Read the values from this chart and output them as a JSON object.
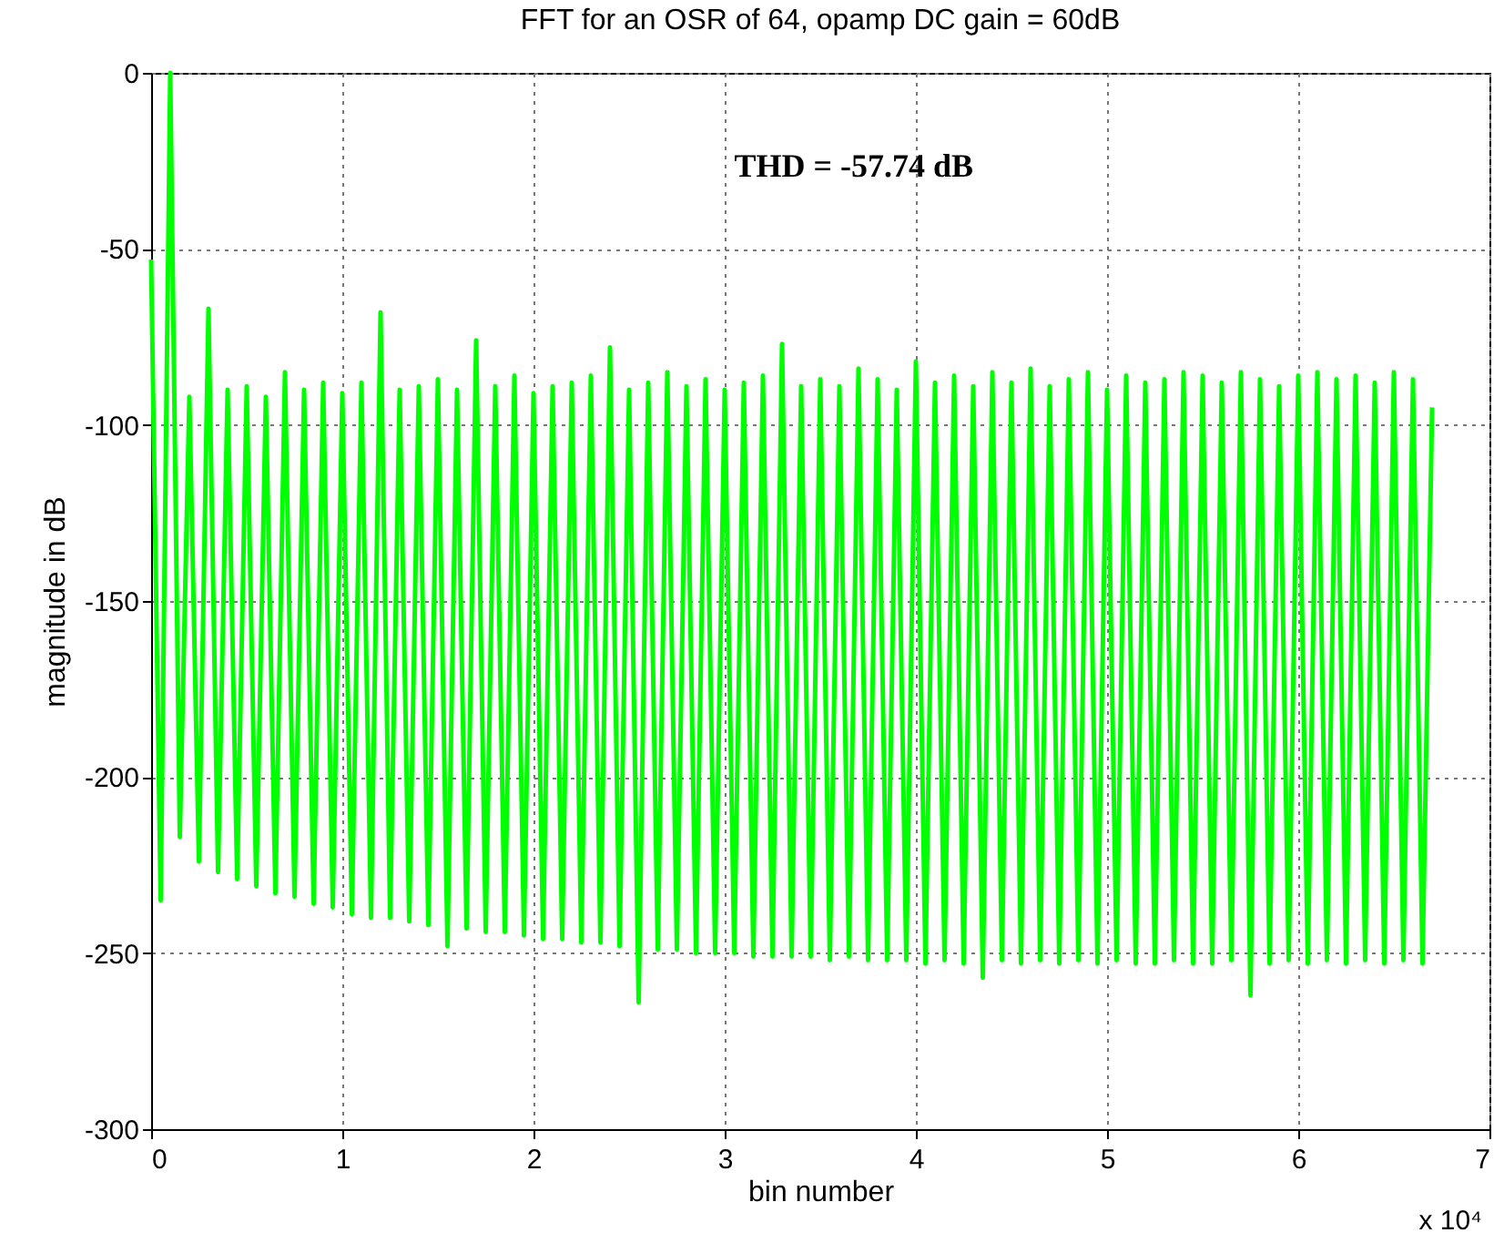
{
  "chart_data": {
    "type": "line",
    "title": "FFT for an OSR of 64, opamp DC gain = 60dB",
    "xlabel": "bin number",
    "ylabel": "magnitude in dB",
    "annotations": [
      "THD = -57.74 dB",
      "x 10⁴"
    ],
    "x": [
      0,
      0.05,
      0.1,
      0.15,
      0.2,
      0.25,
      0.3,
      0.35,
      0.4,
      0.45,
      0.5,
      0.55,
      0.6,
      0.65,
      0.7,
      0.75,
      0.8,
      0.85,
      0.9,
      0.95,
      1,
      1.05,
      1.1,
      1.15,
      1.2,
      1.25,
      1.3,
      1.35,
      1.4,
      1.45,
      1.5,
      1.55,
      1.6,
      1.65,
      1.7,
      1.75,
      1.8,
      1.85,
      1.9,
      1.95,
      2,
      2.05,
      2.1,
      2.15,
      2.2,
      2.25,
      2.3,
      2.35,
      2.4,
      2.45,
      2.5,
      2.55,
      2.6,
      2.65,
      2.7,
      2.75,
      2.8,
      2.85,
      2.9,
      2.95,
      3,
      3.05,
      3.1,
      3.15,
      3.2,
      3.25,
      3.3,
      3.35,
      3.4,
      3.45,
      3.5,
      3.55,
      3.6,
      3.65,
      3.7,
      3.75,
      3.8,
      3.85,
      3.9,
      3.95,
      4,
      4.05,
      4.1,
      4.15,
      4.2,
      4.25,
      4.3,
      4.35,
      4.4,
      4.45,
      4.5,
      4.55,
      4.6,
      4.65,
      4.7,
      4.75,
      4.8,
      4.85,
      4.9,
      4.95,
      5,
      5.05,
      5.1,
      5.15,
      5.2,
      5.25,
      5.3,
      5.35,
      5.4,
      5.45,
      5.5,
      5.55,
      5.6,
      5.65,
      5.7,
      5.75,
      5.8,
      5.85,
      5.9,
      5.95,
      6,
      6.05,
      6.1,
      6.15,
      6.2,
      6.25,
      6.3,
      6.35,
      6.4,
      6.45,
      6.5,
      6.55,
      6.6,
      6.65,
      6.7
    ],
    "series": [
      {
        "color": "#00ff00",
        "values": [
          -53,
          -235,
          0,
          -217,
          -92,
          -224,
          -67,
          -227,
          -90,
          -229,
          -89,
          -231,
          -92,
          -233,
          -85,
          -234,
          -90,
          -236,
          -88,
          -237,
          -91,
          -239,
          -88,
          -240,
          -68,
          -240,
          -90,
          -241,
          -89,
          -242,
          -87,
          -248,
          -90,
          -243,
          -76,
          -244,
          -89,
          -244,
          -86,
          -245,
          -91,
          -246,
          -89,
          -246,
          -88,
          -247,
          -86,
          -247,
          -78,
          -248,
          -90,
          -264,
          -88,
          -249,
          -85,
          -249,
          -89,
          -250,
          -87,
          -250,
          -90,
          -250,
          -88,
          -251,
          -86,
          -251,
          -77,
          -251,
          -89,
          -251,
          -87,
          -252,
          -89,
          -251,
          -84,
          -252,
          -87,
          -252,
          -90,
          -252,
          -82,
          -253,
          -88,
          -252,
          -86,
          -253,
          -89,
          -257,
          -85,
          -252,
          -88,
          -253,
          -84,
          -252,
          -89,
          -253,
          -87,
          -252,
          -85,
          -253,
          -90,
          -252,
          -86,
          -253,
          -88,
          -253,
          -87,
          -252,
          -85,
          -253,
          -86,
          -253,
          -88,
          -252,
          -85,
          -262,
          -87,
          -253,
          -89,
          -252,
          -86,
          -253,
          -85,
          -252,
          -87,
          -253,
          -86,
          -252,
          -88,
          -253,
          -85,
          -252,
          -87,
          -253,
          -95
        ]
      }
    ],
    "xlim": [
      0,
      7
    ],
    "xticks": [
      0,
      1,
      2,
      3,
      4,
      5,
      6,
      7
    ],
    "ylim": [
      -300,
      0
    ],
    "yticks": [
      -300,
      -250,
      -200,
      -150,
      -100,
      -50,
      0
    ],
    "grid": true,
    "marker": "none",
    "line_style": "solid"
  }
}
